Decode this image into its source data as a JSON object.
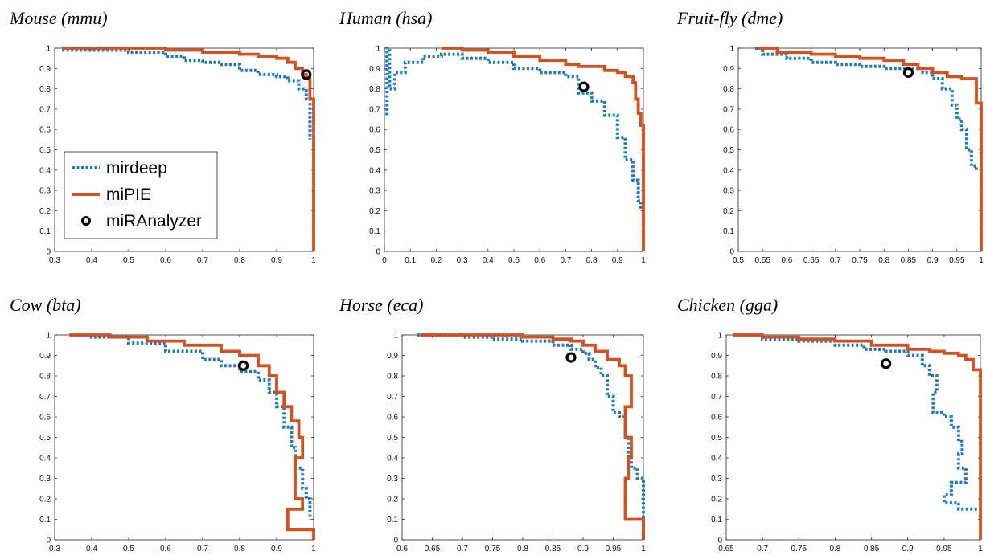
{
  "colors": {
    "mirdeep": "#1f7bc1",
    "mipie": "#d4501e",
    "miranalyzer": "#000000"
  },
  "legend": {
    "placement": "lower-left of first panel",
    "entries": [
      {
        "key": "mirdeep",
        "label": "mirdeep",
        "style": "dotted"
      },
      {
        "key": "mipie",
        "label": "miPIE",
        "style": "solid"
      },
      {
        "key": "miranalyzer",
        "label": "miRAnalyzer",
        "style": "circle-marker"
      }
    ]
  },
  "chart_data": [
    {
      "type": "line",
      "title": "Mouse (mmu)",
      "xlim": [
        0.3,
        1
      ],
      "ylim": [
        0,
        1
      ],
      "xticks": [
        0.3,
        0.4,
        0.5,
        0.6,
        0.7,
        0.8,
        0.9,
        1
      ],
      "xtick_labels": [
        "0.3",
        "0.4",
        "0.5",
        "0.6",
        "0.7",
        "0.8",
        "0.9",
        "1"
      ],
      "yticks": [
        0,
        0.1,
        0.2,
        0.3,
        0.4,
        0.5,
        0.6,
        0.7,
        0.8,
        0.9,
        1
      ],
      "ytick_labels": [
        "0",
        "0.1",
        "0.2",
        "0.3",
        "0.4",
        "0.5",
        "0.6",
        "0.7",
        "0.8",
        "0.9",
        "1"
      ],
      "series": [
        {
          "name": "mirdeep",
          "x": [
            0.32,
            0.4,
            0.5,
            0.6,
            0.65,
            0.7,
            0.75,
            0.8,
            0.85,
            0.9,
            0.93,
            0.96,
            0.98,
            0.99,
            0.99
          ],
          "y": [
            0.99,
            0.99,
            0.98,
            0.96,
            0.94,
            0.93,
            0.92,
            0.89,
            0.87,
            0.86,
            0.84,
            0.8,
            0.75,
            0.65,
            0.55
          ]
        },
        {
          "name": "miPIE",
          "x": [
            0.32,
            0.5,
            0.6,
            0.7,
            0.8,
            0.85,
            0.9,
            0.93,
            0.95,
            0.97,
            0.98,
            0.99,
            0.99,
            1,
            1
          ],
          "y": [
            1,
            1,
            0.99,
            0.98,
            0.97,
            0.96,
            0.95,
            0.93,
            0.9,
            0.87,
            0.85,
            0.8,
            0.75,
            0.75,
            0
          ]
        },
        {
          "name": "miRAnalyzer",
          "marker": true,
          "x": [
            0.98
          ],
          "y": [
            0.87
          ]
        }
      ]
    },
    {
      "type": "line",
      "title": "Human (hsa)",
      "xlim": [
        0,
        1
      ],
      "ylim": [
        0,
        1
      ],
      "xticks": [
        0,
        0.1,
        0.2,
        0.3,
        0.4,
        0.5,
        0.6,
        0.7,
        0.8,
        0.9,
        1
      ],
      "xtick_labels": [
        "0",
        "0.1",
        "0.2",
        "0.3",
        "0.4",
        "0.5",
        "0.6",
        "0.7",
        "0.8",
        "0.9",
        "1"
      ],
      "yticks": [
        0,
        0.1,
        0.2,
        0.3,
        0.4,
        0.5,
        0.6,
        0.7,
        0.8,
        0.9,
        1
      ],
      "ytick_labels": [
        "0",
        "0.1",
        "0.2",
        "0.3",
        "0.4",
        "0.5",
        "0.6",
        "0.7",
        "0.8",
        "0.9",
        "1"
      ],
      "series": [
        {
          "name": "mirdeep",
          "x": [
            0.01,
            0.01,
            0.02,
            0.04,
            0.08,
            0.15,
            0.22,
            0.3,
            0.4,
            0.5,
            0.6,
            0.7,
            0.75,
            0.8,
            0.85,
            0.9,
            0.93,
            0.96,
            0.98,
            0.99
          ],
          "y": [
            0.67,
            1,
            0.8,
            0.88,
            0.93,
            0.96,
            0.97,
            0.95,
            0.93,
            0.9,
            0.88,
            0.86,
            0.78,
            0.74,
            0.67,
            0.56,
            0.45,
            0.35,
            0.25,
            0.2
          ]
        },
        {
          "name": "miPIE",
          "x": [
            0.22,
            0.3,
            0.4,
            0.5,
            0.6,
            0.7,
            0.75,
            0.8,
            0.85,
            0.9,
            0.93,
            0.96,
            0.97,
            0.98,
            0.99,
            1,
            1
          ],
          "y": [
            1,
            0.99,
            0.98,
            0.96,
            0.94,
            0.92,
            0.91,
            0.91,
            0.89,
            0.88,
            0.86,
            0.83,
            0.75,
            0.68,
            0.62,
            0.58,
            0
          ]
        },
        {
          "name": "miRAnalyzer",
          "marker": true,
          "x": [
            0.77
          ],
          "y": [
            0.81
          ]
        }
      ]
    },
    {
      "type": "line",
      "title": "Fruit-fly (dme)",
      "xlim": [
        0.5,
        1
      ],
      "ylim": [
        0,
        1
      ],
      "xticks": [
        0.5,
        0.55,
        0.6,
        0.65,
        0.7,
        0.75,
        0.8,
        0.85,
        0.9,
        0.95,
        1
      ],
      "xtick_labels": [
        "0.5",
        "0.55",
        "0.6",
        "0.65",
        "0.7",
        "0.75",
        "0.8",
        "0.85",
        "0.9",
        "0.95",
        "1"
      ],
      "yticks": [
        0,
        0.1,
        0.2,
        0.3,
        0.4,
        0.5,
        0.6,
        0.7,
        0.8,
        0.9,
        1
      ],
      "ytick_labels": [
        "0",
        "0.1",
        "0.2",
        "0.3",
        "0.4",
        "0.5",
        "0.6",
        "0.7",
        "0.8",
        "0.9",
        "1"
      ],
      "series": [
        {
          "name": "mirdeep",
          "x": [
            0.535,
            0.55,
            0.6,
            0.65,
            0.7,
            0.75,
            0.8,
            0.85,
            0.88,
            0.9,
            0.92,
            0.94,
            0.95,
            0.96,
            0.97,
            0.98,
            0.99
          ],
          "y": [
            1,
            0.97,
            0.95,
            0.93,
            0.92,
            0.91,
            0.9,
            0.9,
            0.88,
            0.85,
            0.8,
            0.72,
            0.65,
            0.6,
            0.5,
            0.42,
            0.4
          ]
        },
        {
          "name": "miPIE",
          "x": [
            0.54,
            0.58,
            0.65,
            0.7,
            0.75,
            0.8,
            0.84,
            0.87,
            0.9,
            0.93,
            0.96,
            0.99,
            0.99,
            1,
            1
          ],
          "y": [
            1,
            0.98,
            0.97,
            0.96,
            0.95,
            0.94,
            0.92,
            0.9,
            0.88,
            0.86,
            0.85,
            0.85,
            0.73,
            0.73,
            0
          ]
        },
        {
          "name": "miRAnalyzer",
          "marker": true,
          "x": [
            0.85
          ],
          "y": [
            0.88
          ]
        }
      ]
    },
    {
      "type": "line",
      "title": "Cow (bta)",
      "xlim": [
        0.3,
        1
      ],
      "ylim": [
        0,
        1
      ],
      "xticks": [
        0.3,
        0.4,
        0.5,
        0.6,
        0.7,
        0.8,
        0.9,
        1
      ],
      "xtick_labels": [
        "0.3",
        "0.4",
        "0.5",
        "0.6",
        "0.7",
        "0.8",
        "0.9",
        "1"
      ],
      "yticks": [
        0,
        0.1,
        0.2,
        0.3,
        0.4,
        0.5,
        0.6,
        0.7,
        0.8,
        0.9,
        1
      ],
      "ytick_labels": [
        "0",
        "0.1",
        "0.2",
        "0.3",
        "0.4",
        "0.5",
        "0.6",
        "0.7",
        "0.8",
        "0.9",
        "1"
      ],
      "series": [
        {
          "name": "mirdeep",
          "x": [
            0.34,
            0.4,
            0.5,
            0.6,
            0.7,
            0.75,
            0.8,
            0.85,
            0.88,
            0.9,
            0.92,
            0.94,
            0.95,
            0.97,
            0.98,
            0.99,
            0.99
          ],
          "y": [
            1,
            0.99,
            0.96,
            0.92,
            0.88,
            0.85,
            0.82,
            0.78,
            0.72,
            0.65,
            0.55,
            0.45,
            0.35,
            0.25,
            0.2,
            0.15,
            0.1
          ]
        },
        {
          "name": "miPIE",
          "x": [
            0.34,
            0.45,
            0.55,
            0.65,
            0.75,
            0.8,
            0.85,
            0.88,
            0.9,
            0.92,
            0.94,
            0.96,
            0.97,
            0.95,
            0.97,
            0.93,
            0.99,
            1,
            1
          ],
          "y": [
            1,
            0.99,
            0.97,
            0.95,
            0.92,
            0.9,
            0.85,
            0.8,
            0.72,
            0.65,
            0.58,
            0.5,
            0.4,
            0.2,
            0.15,
            0.05,
            0.05,
            0.05,
            0
          ]
        },
        {
          "name": "miRAnalyzer",
          "marker": true,
          "x": [
            0.81
          ],
          "y": [
            0.85
          ]
        }
      ]
    },
    {
      "type": "line",
      "title": "Horse (eca)",
      "xlim": [
        0.6,
        1
      ],
      "ylim": [
        0,
        1
      ],
      "xticks": [
        0.6,
        0.65,
        0.7,
        0.75,
        0.8,
        0.85,
        0.9,
        0.95,
        1
      ],
      "xtick_labels": [
        "0.6",
        "0.65",
        "0.7",
        "0.75",
        "0.8",
        "0.85",
        "0.9",
        "0.95",
        "1"
      ],
      "yticks": [
        0,
        0.1,
        0.2,
        0.3,
        0.4,
        0.5,
        0.6,
        0.7,
        0.8,
        0.9,
        1
      ],
      "ytick_labels": [
        "0",
        "0.1",
        "0.2",
        "0.3",
        "0.4",
        "0.5",
        "0.6",
        "0.7",
        "0.8",
        "0.9",
        "1"
      ],
      "series": [
        {
          "name": "mirdeep",
          "x": [
            0.625,
            0.7,
            0.75,
            0.8,
            0.85,
            0.88,
            0.9,
            0.91,
            0.92,
            0.93,
            0.94,
            0.95,
            0.96,
            0.97,
            0.975,
            0.98,
            0.99,
            1,
            1
          ],
          "y": [
            1,
            0.99,
            0.98,
            0.97,
            0.95,
            0.93,
            0.91,
            0.88,
            0.84,
            0.8,
            0.7,
            0.62,
            0.6,
            0.5,
            0.4,
            0.35,
            0.3,
            0.2,
            0
          ]
        },
        {
          "name": "miPIE",
          "x": [
            0.63,
            0.7,
            0.8,
            0.85,
            0.88,
            0.9,
            0.92,
            0.94,
            0.96,
            0.97,
            0.98,
            0.98,
            0.97,
            0.98,
            0.975,
            0.97,
            1,
            1
          ],
          "y": [
            1,
            1,
            0.99,
            0.98,
            0.97,
            0.95,
            0.92,
            0.88,
            0.85,
            0.8,
            0.75,
            0.65,
            0.5,
            0.4,
            0.3,
            0.1,
            0.1,
            0
          ]
        },
        {
          "name": "miRAnalyzer",
          "marker": true,
          "x": [
            0.88
          ],
          "y": [
            0.89
          ]
        }
      ]
    },
    {
      "type": "line",
      "title": "Chicken (gga)",
      "xlim": [
        0.65,
        1
      ],
      "ylim": [
        0,
        1
      ],
      "xticks": [
        0.65,
        0.7,
        0.75,
        0.8,
        0.85,
        0.9,
        0.95,
        1
      ],
      "xtick_labels": [
        "0.65",
        "0.7",
        "0.75",
        "0.8",
        "0.85",
        "0.9",
        "0.95",
        "1"
      ],
      "yticks": [
        0,
        0.1,
        0.2,
        0.3,
        0.4,
        0.5,
        0.6,
        0.7,
        0.8,
        0.9,
        1
      ],
      "ytick_labels": [
        "0",
        "0.1",
        "0.2",
        "0.3",
        "0.4",
        "0.5",
        "0.6",
        "0.7",
        "0.8",
        "0.9",
        "1"
      ],
      "series": [
        {
          "name": "mirdeep",
          "x": [
            0.66,
            0.7,
            0.75,
            0.8,
            0.84,
            0.87,
            0.9,
            0.92,
            0.93,
            0.94,
            0.935,
            0.95,
            0.96,
            0.97,
            0.975,
            0.97,
            0.98,
            0.96,
            0.95,
            0.97,
            0.99,
            1
          ],
          "y": [
            1,
            0.98,
            0.97,
            0.95,
            0.93,
            0.92,
            0.9,
            0.85,
            0.8,
            0.72,
            0.62,
            0.6,
            0.55,
            0.48,
            0.42,
            0.35,
            0.28,
            0.22,
            0.18,
            0.15,
            0.15,
            0.15
          ]
        },
        {
          "name": "miPIE",
          "x": [
            0.66,
            0.7,
            0.75,
            0.8,
            0.85,
            0.9,
            0.93,
            0.95,
            0.97,
            0.98,
            0.99,
            1,
            1
          ],
          "y": [
            1,
            0.99,
            0.98,
            0.97,
            0.95,
            0.93,
            0.92,
            0.91,
            0.9,
            0.88,
            0.83,
            0.73,
            0
          ]
        },
        {
          "name": "miRAnalyzer",
          "marker": true,
          "x": [
            0.87
          ],
          "y": [
            0.86
          ]
        }
      ]
    }
  ]
}
